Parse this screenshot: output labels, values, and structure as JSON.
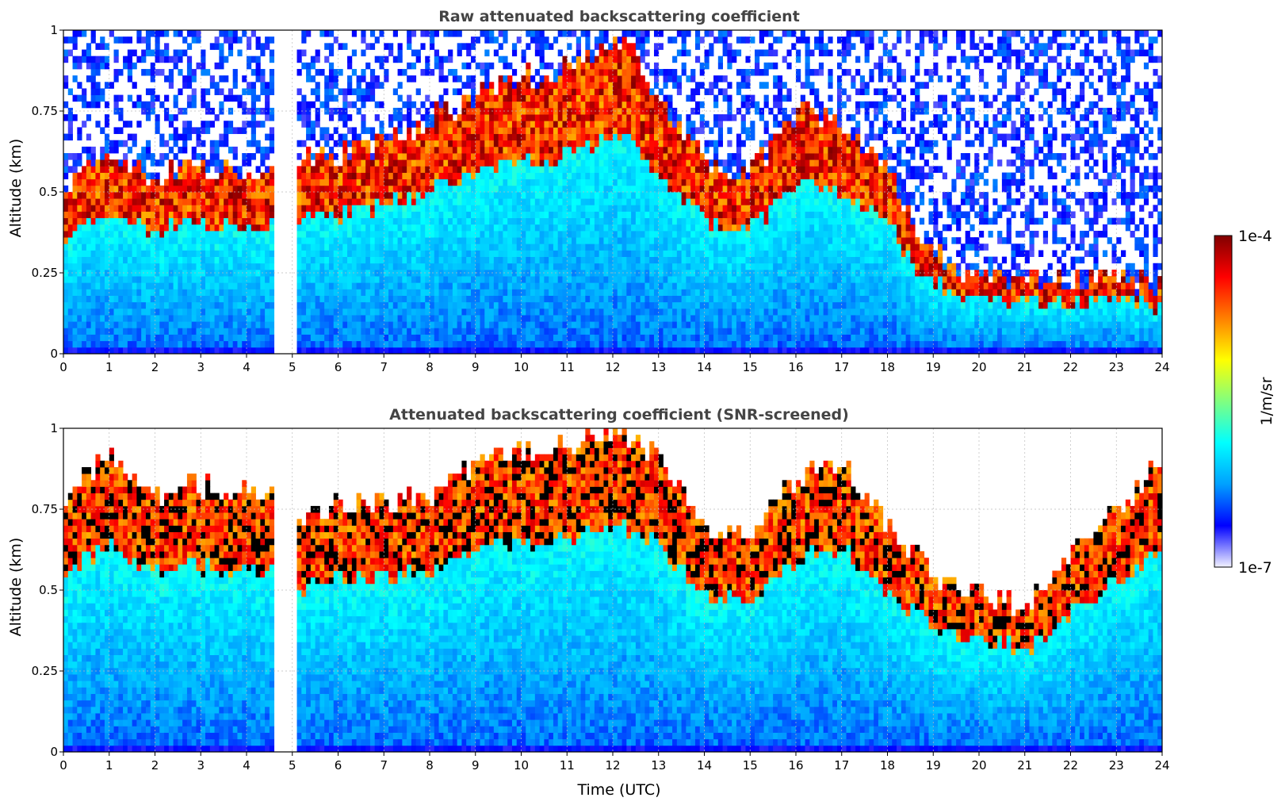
{
  "chart_data": [
    {
      "type": "heatmap",
      "title": "Raw attenuated backscattering coefficient",
      "xlabel": "",
      "ylabel": "Altitude (km)",
      "xlim": [
        0,
        24
      ],
      "ylim": [
        0,
        1
      ],
      "x_ticks": [
        "0",
        "1",
        "2",
        "3",
        "4",
        "5",
        "6",
        "7",
        "8",
        "9",
        "10",
        "11",
        "12",
        "13",
        "14",
        "15",
        "16",
        "17",
        "18",
        "19",
        "20",
        "21",
        "22",
        "23",
        "24"
      ],
      "y_ticks": [
        "0",
        "0.25",
        "0.5",
        "0.75",
        "1"
      ],
      "grid": true,
      "data_gaps_utc": [
        [
          4.6,
          5.05
        ]
      ],
      "aerosol_layer_top_km": [
        [
          0,
          0.52
        ],
        [
          1,
          0.6
        ],
        [
          2,
          0.55
        ],
        [
          3,
          0.58
        ],
        [
          4,
          0.55
        ],
        [
          4.6,
          0.55
        ],
        [
          5.05,
          0.6
        ],
        [
          6,
          0.62
        ],
        [
          7,
          0.65
        ],
        [
          8,
          0.72
        ],
        [
          9,
          0.8
        ],
        [
          10,
          0.85
        ],
        [
          11,
          0.88
        ],
        [
          12,
          0.95
        ],
        [
          12.5,
          0.92
        ],
        [
          13,
          0.78
        ],
        [
          14,
          0.6
        ],
        [
          15,
          0.55
        ],
        [
          16,
          0.75
        ],
        [
          17,
          0.7
        ],
        [
          18,
          0.58
        ],
        [
          18.5,
          0.42
        ],
        [
          19,
          0.3
        ],
        [
          20,
          0.25
        ],
        [
          21,
          0.22
        ],
        [
          22,
          0.22
        ],
        [
          23,
          0.25
        ],
        [
          24,
          0.2
        ]
      ]
    },
    {
      "type": "heatmap",
      "title": "Attenuated backscattering coefficient (SNR-screened)",
      "xlabel": "Time (UTC)",
      "ylabel": "Altitude (km)",
      "xlim": [
        0,
        24
      ],
      "ylim": [
        0,
        1
      ],
      "x_ticks": [
        "0",
        "1",
        "2",
        "3",
        "4",
        "5",
        "6",
        "7",
        "8",
        "9",
        "10",
        "11",
        "12",
        "13",
        "14",
        "15",
        "16",
        "17",
        "18",
        "19",
        "20",
        "21",
        "22",
        "23",
        "24"
      ],
      "y_ticks": [
        "0",
        "0.25",
        "0.5",
        "0.75",
        "1"
      ],
      "grid": true,
      "data_gaps_utc": [
        [
          4.6,
          5.05
        ]
      ],
      "screened_signal_top_km": [
        [
          0,
          0.78
        ],
        [
          1,
          0.92
        ],
        [
          2,
          0.8
        ],
        [
          3,
          0.82
        ],
        [
          4,
          0.8
        ],
        [
          4.6,
          0.8
        ],
        [
          5.05,
          0.7
        ],
        [
          6,
          0.78
        ],
        [
          7,
          0.76
        ],
        [
          8,
          0.8
        ],
        [
          9,
          0.9
        ],
        [
          10,
          0.92
        ],
        [
          11,
          0.95
        ],
        [
          12,
          1.0
        ],
        [
          13,
          0.92
        ],
        [
          14,
          0.7
        ],
        [
          15,
          0.65
        ],
        [
          16,
          0.85
        ],
        [
          17,
          0.9
        ],
        [
          18,
          0.7
        ],
        [
          19,
          0.55
        ],
        [
          20,
          0.5
        ],
        [
          21,
          0.45
        ],
        [
          22,
          0.6
        ],
        [
          23,
          0.75
        ],
        [
          24,
          0.9
        ]
      ]
    }
  ],
  "colorbar": {
    "max_label": "1e-4",
    "min_label": "1e-7",
    "units": "1/m/sr",
    "scale": "log",
    "colormap": "jet",
    "colors": [
      "#f2f2ff",
      "#0000ff",
      "#00a0ff",
      "#00ffff",
      "#80ff80",
      "#ffff00",
      "#ff8000",
      "#ff0000",
      "#800000"
    ]
  },
  "colors": {
    "screened_saturation": "#000000",
    "title_text": "#444444",
    "grid": "#bbbbbb"
  }
}
